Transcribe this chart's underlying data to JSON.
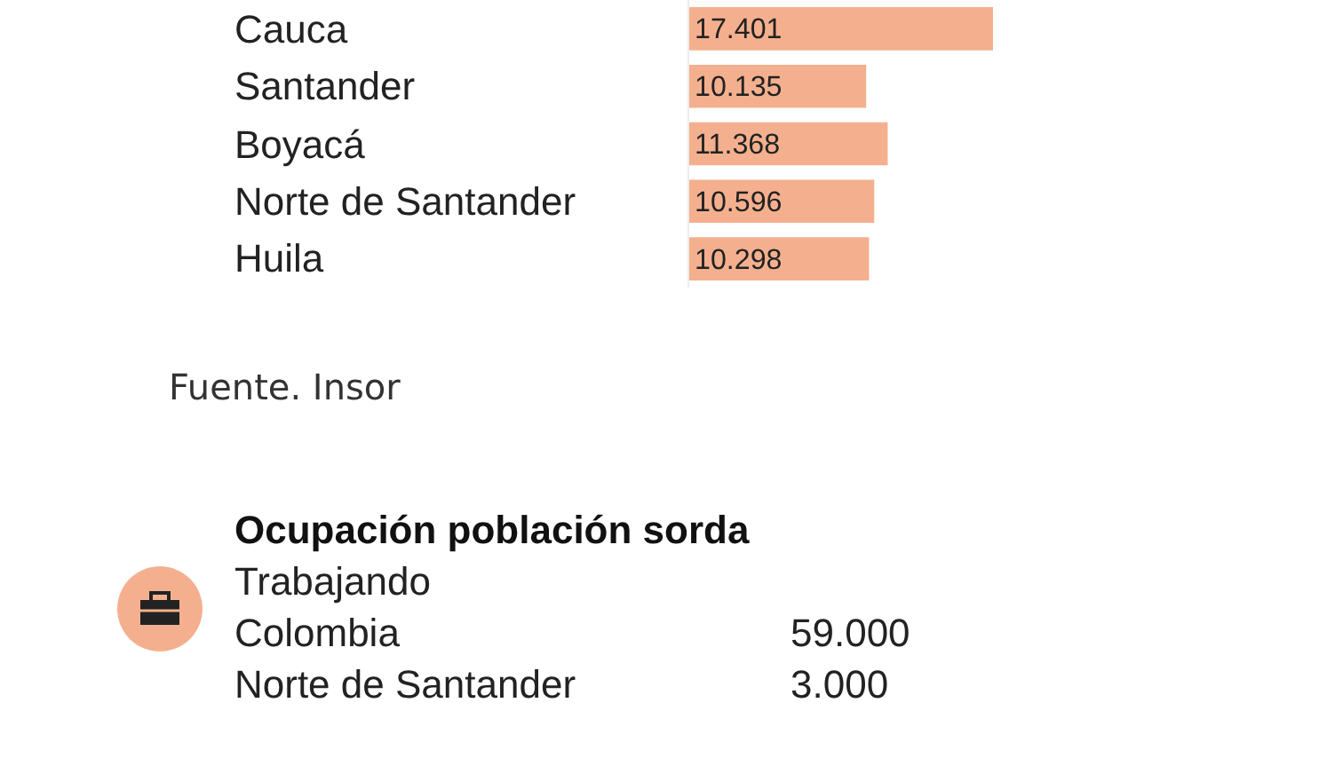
{
  "chart_data": [
    {
      "type": "bar",
      "orientation": "horizontal",
      "categories": [
        "Cauca",
        "Santander",
        "Boyacá",
        "Norte de Santander",
        "Huila"
      ],
      "values": [
        17401,
        10135,
        11368,
        10596,
        10298
      ],
      "value_labels": [
        "17.401",
        "10.135",
        "11.368",
        "10.596",
        "10.298"
      ],
      "color": "#f4b08e",
      "annotations": [
        "Fuente. Insor"
      ]
    },
    {
      "type": "other",
      "title": "Ocupación población sorda",
      "subtitle": "Trabajando",
      "annotations": [
        "Colombia",
        "59.000",
        "Norte de Santander",
        "3.000"
      ]
    }
  ]
}
